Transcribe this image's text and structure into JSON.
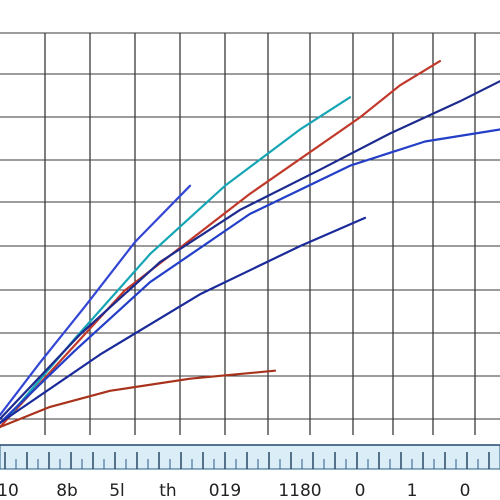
{
  "chart_data": {
    "type": "line",
    "title": "",
    "xlabel": "",
    "ylabel": "",
    "grid": true,
    "legend": "none",
    "tick_labels": [
      "10",
      "8b",
      "5l",
      "th",
      "019",
      "1180",
      "0",
      "1",
      "0"
    ],
    "series": [
      {
        "color": "#c0392b",
        "x": [
          0.0,
          0.25,
          0.5,
          0.72,
          0.8,
          0.88
        ],
        "y": [
          0.02,
          0.36,
          0.6,
          0.79,
          0.87,
          0.93
        ]
      },
      {
        "color": "#16a5b5",
        "x": [
          0.02,
          0.15,
          0.3,
          0.45,
          0.6,
          0.7
        ],
        "y": [
          0.05,
          0.24,
          0.45,
          0.62,
          0.76,
          0.84
        ]
      },
      {
        "color": "#1d2b8f",
        "x": [
          0.0,
          0.16,
          0.32,
          0.48,
          0.64,
          0.78,
          0.92,
          1.0
        ],
        "y": [
          0.04,
          0.25,
          0.43,
          0.56,
          0.66,
          0.75,
          0.83,
          0.88
        ]
      },
      {
        "color": "#233fc7",
        "x": [
          0.0,
          0.15,
          0.3,
          0.5,
          0.7,
          0.85,
          1.0
        ],
        "y": [
          0.03,
          0.21,
          0.38,
          0.55,
          0.67,
          0.73,
          0.76
        ]
      },
      {
        "color": "#1a2a9a",
        "x": [
          0.0,
          0.2,
          0.4,
          0.6,
          0.73
        ],
        "y": [
          0.03,
          0.2,
          0.35,
          0.47,
          0.54
        ]
      },
      {
        "color": "#3346d4",
        "x": [
          0.0,
          0.08,
          0.17,
          0.27,
          0.38
        ],
        "y": [
          0.05,
          0.18,
          0.32,
          0.48,
          0.62
        ]
      },
      {
        "color": "#a8321c",
        "x": [
          0.0,
          0.1,
          0.22,
          0.38,
          0.55
        ],
        "y": [
          0.02,
          0.07,
          0.11,
          0.14,
          0.16
        ]
      }
    ]
  }
}
